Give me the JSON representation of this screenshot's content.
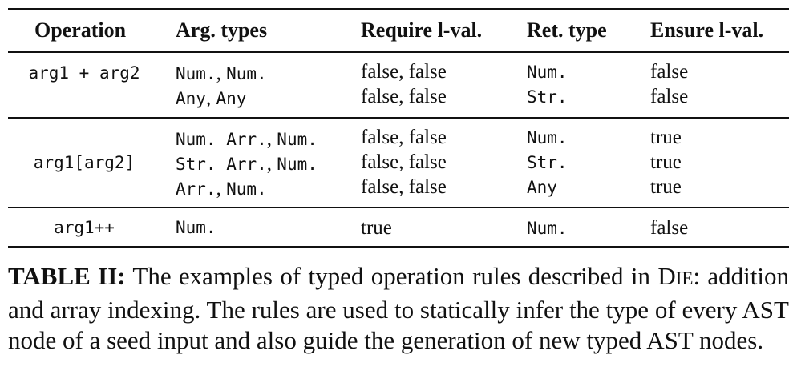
{
  "table": {
    "headers": {
      "operation": "Operation",
      "arg_types": "Arg. types",
      "require_lval": "Require l-val.",
      "ret_type": "Ret. type",
      "ensure_lval": "Ensure l-val."
    },
    "groups": [
      {
        "operation": "arg1 + arg2",
        "rows": [
          {
            "arg_types": [
              "Num.",
              ", ",
              "Num."
            ],
            "require_lval": "false, false",
            "ret_type": "Num.",
            "ensure_lval": "false"
          },
          {
            "arg_types": [
              "Any",
              ", ",
              "Any"
            ],
            "require_lval": "false, false",
            "ret_type": "Str.",
            "ensure_lval": "false"
          }
        ]
      },
      {
        "operation": "arg1[arg2]",
        "rows": [
          {
            "arg_types": [
              "Num. Arr.",
              ", ",
              "Num."
            ],
            "require_lval": "false, false",
            "ret_type": "Num.",
            "ensure_lval": "true"
          },
          {
            "arg_types": [
              "Str. Arr.",
              ", ",
              "Num."
            ],
            "require_lval": "false, false",
            "ret_type": "Str.",
            "ensure_lval": "true"
          },
          {
            "arg_types": [
              "Arr.",
              ", ",
              "Num."
            ],
            "require_lval": "false, false",
            "ret_type": "Any",
            "ensure_lval": "true"
          }
        ]
      },
      {
        "operation": "arg1++",
        "rows": [
          {
            "arg_types": [
              "Num."
            ],
            "require_lval": "true",
            "ret_type": "Num.",
            "ensure_lval": "false"
          }
        ]
      }
    ]
  },
  "caption": {
    "label": "TABLE II:",
    "text_before_name": " The examples of typed operation rules described in ",
    "name_first": "D",
    "name_rest": "IE",
    "text_after_name": ": addition and array indexing. The rules are used to statically infer the type of every AST node of a seed input and also guide the generation of new typed AST nodes."
  }
}
